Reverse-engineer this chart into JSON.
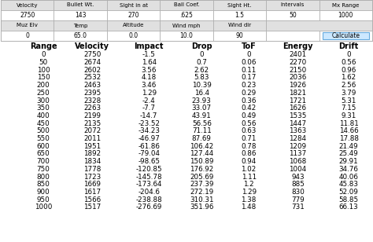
{
  "input_headers": [
    "Velocity",
    "Bullet Wt.",
    "Sight in at",
    "Ball Coef.",
    "Sight Ht.",
    "Intervals",
    "Mx Range"
  ],
  "input_values": [
    "2750",
    "143",
    "270",
    ".625",
    "1.5",
    "50",
    "1000"
  ],
  "input_headers2": [
    "Muz Elv",
    "Temp",
    "Altitude",
    "Wind mph",
    "Wind dir"
  ],
  "input_values2": [
    "0",
    "65.0",
    "0.0",
    "10.0",
    "90"
  ],
  "col_headers": [
    "Range",
    "Velocity",
    "Impact",
    "Drop",
    "ToF",
    "Energy",
    "Drift"
  ],
  "table_data": [
    [
      0,
      2750,
      -1.5,
      0,
      0,
      2401,
      0
    ],
    [
      50,
      2674,
      1.64,
      0.7,
      0.06,
      2270,
      0.56
    ],
    [
      100,
      2602,
      3.56,
      2.62,
      0.11,
      2150,
      0.96
    ],
    [
      150,
      2532,
      4.18,
      5.83,
      0.17,
      2036,
      1.62
    ],
    [
      200,
      2463,
      3.46,
      10.39,
      0.23,
      1926,
      2.56
    ],
    [
      250,
      2395,
      1.29,
      16.4,
      0.29,
      1821,
      3.79
    ],
    [
      300,
      2328,
      -2.4,
      23.93,
      0.36,
      1721,
      5.31
    ],
    [
      350,
      2263,
      -7.7,
      33.07,
      0.42,
      1626,
      7.15
    ],
    [
      400,
      2199,
      -14.7,
      43.91,
      0.49,
      1535,
      9.31
    ],
    [
      450,
      2135,
      -23.52,
      56.56,
      0.56,
      1447,
      11.81
    ],
    [
      500,
      2072,
      -34.23,
      71.11,
      0.63,
      1363,
      14.66
    ],
    [
      550,
      2011,
      -46.97,
      87.69,
      0.71,
      1284,
      17.88
    ],
    [
      600,
      1951,
      -61.86,
      106.42,
      0.78,
      1209,
      21.49
    ],
    [
      650,
      1892,
      -79.04,
      127.44,
      0.86,
      1137,
      25.49
    ],
    [
      700,
      1834,
      -98.65,
      150.89,
      0.94,
      1068,
      29.91
    ],
    [
      750,
      1778,
      -120.85,
      176.92,
      1.02,
      1004,
      34.76
    ],
    [
      800,
      1723,
      -145.78,
      205.69,
      1.11,
      943,
      40.06
    ],
    [
      850,
      1669,
      -173.64,
      237.39,
      1.2,
      885,
      45.83
    ],
    [
      900,
      1617,
      -204.6,
      272.19,
      1.29,
      830,
      52.09
    ],
    [
      950,
      1566,
      -238.88,
      310.31,
      1.38,
      779,
      58.85
    ],
    [
      1000,
      1517,
      -276.69,
      351.96,
      1.48,
      731,
      66.13
    ]
  ],
  "bg_color": "#ffffff",
  "header_bg": "#e0e0e0",
  "border_color": "#aaaaaa",
  "button_color": "#cce8ff",
  "button_border": "#66aadd",
  "text_color": "#000000"
}
